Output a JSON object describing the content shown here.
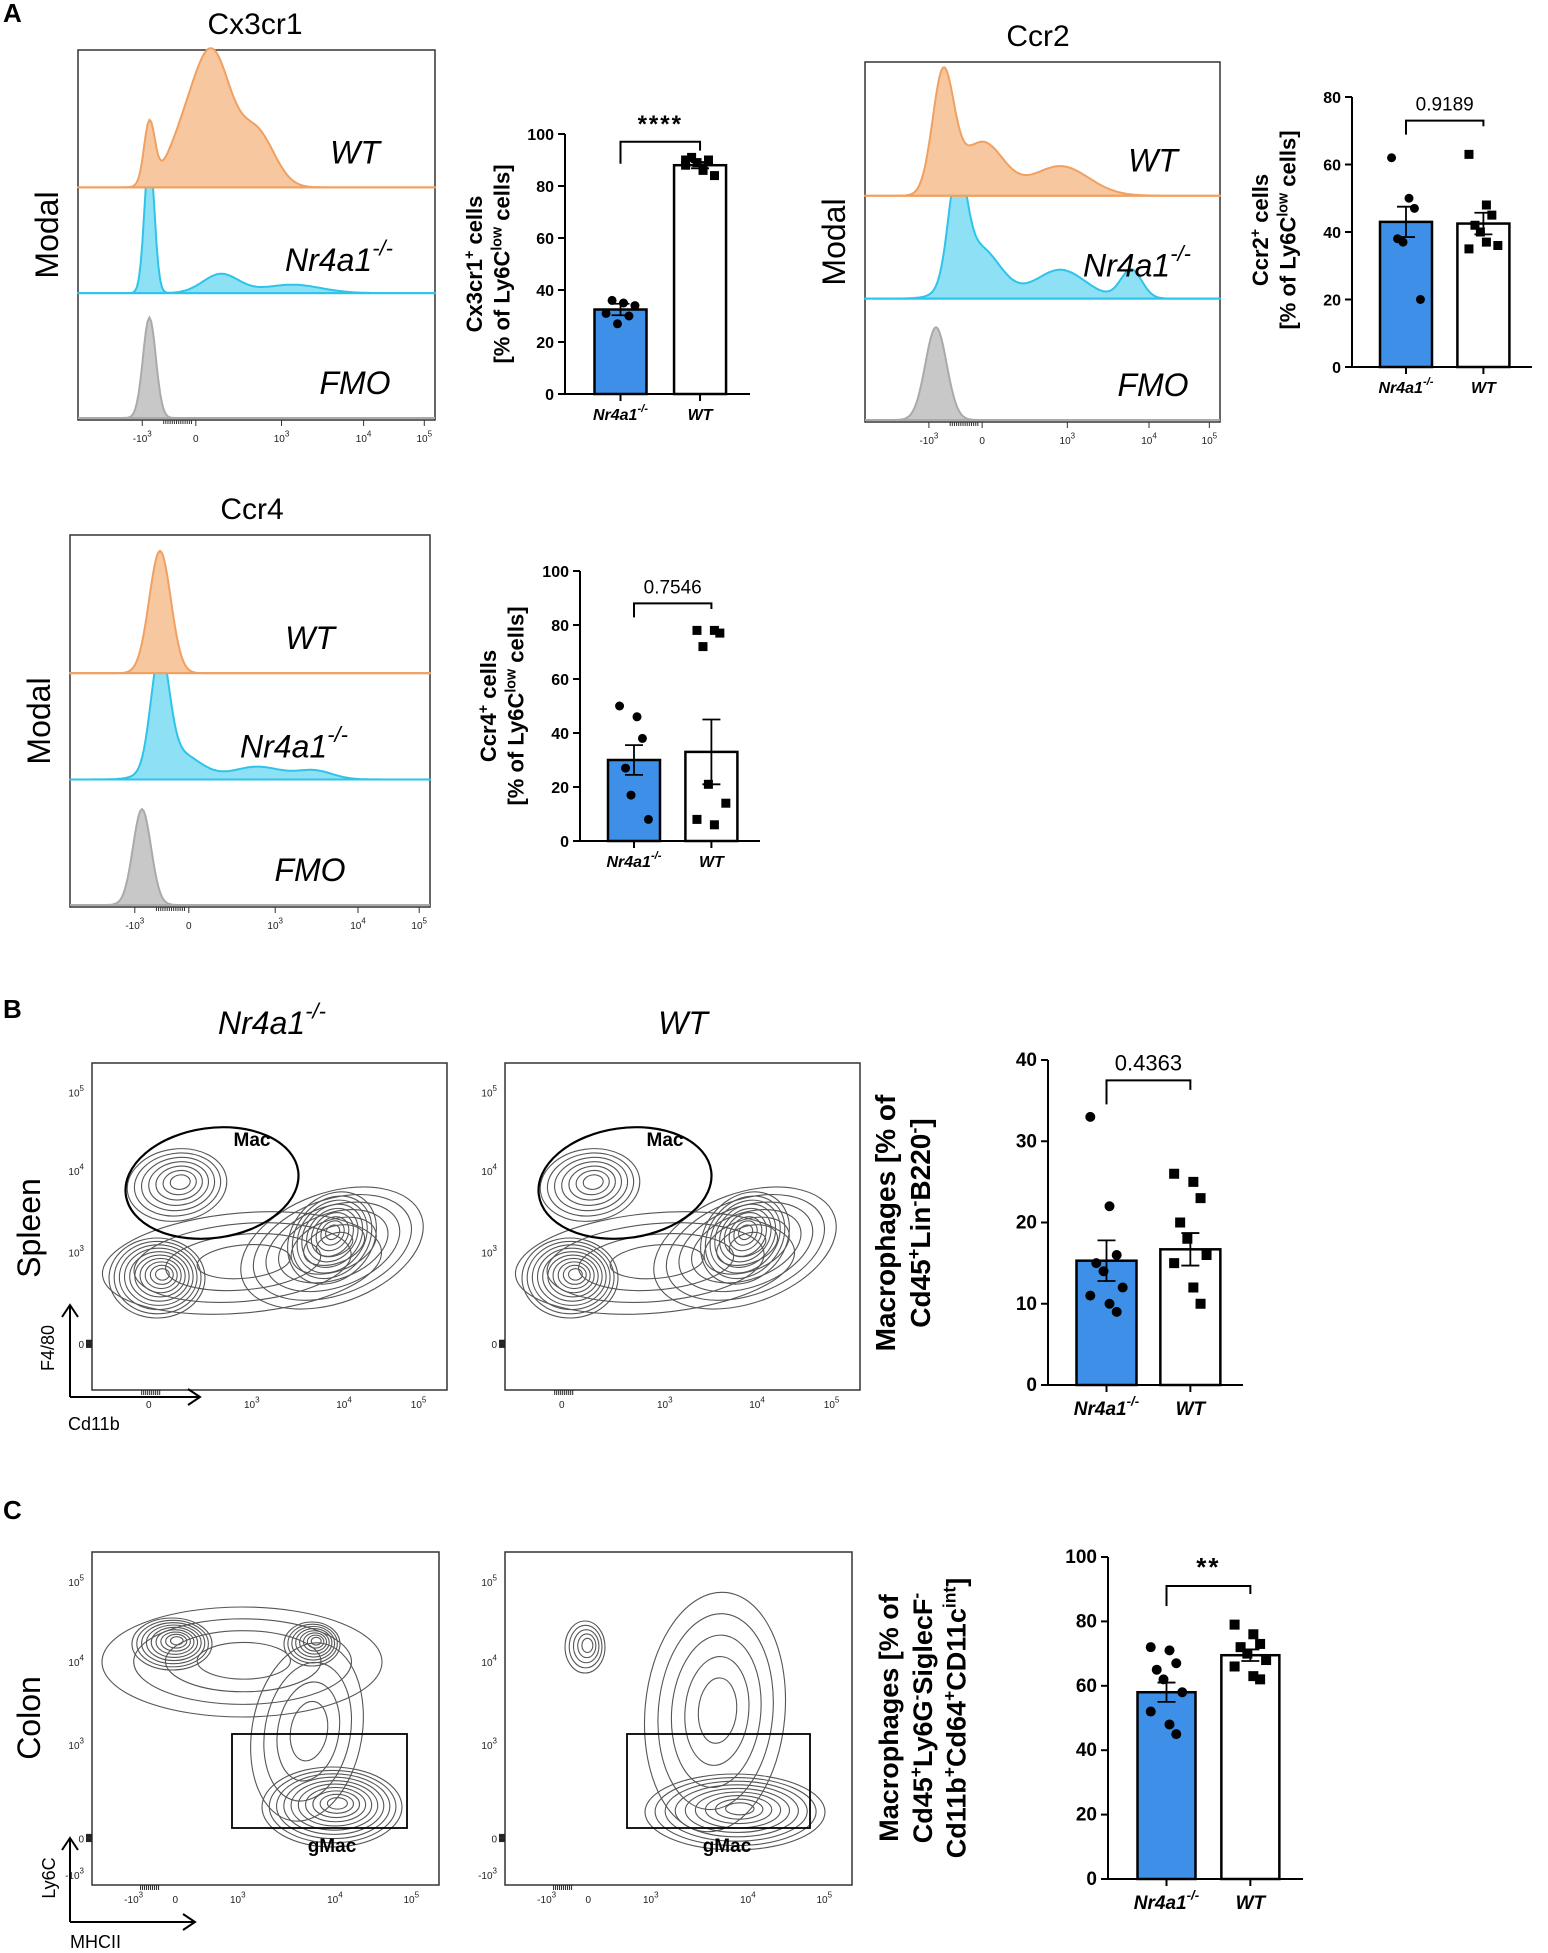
{
  "panels": {
    "A": "A",
    "B": "B",
    "C": "C"
  },
  "histograms": {
    "cx3cr1": {
      "title": "Cx3cr1",
      "ylabel": "Modal",
      "labels": [
        "WT",
        "Nr4a1",
        "FMO"
      ]
    },
    "ccr2": {
      "title": "Ccr2",
      "ylabel": "Modal",
      "labels": [
        "WT",
        "Nr4a1",
        "FMO"
      ]
    },
    "ccr4": {
      "title": "Ccr4",
      "ylabel": "Modal",
      "labels": [
        "WT",
        "Nr4a1",
        "FMO"
      ]
    },
    "ko_sup": "-/-",
    "xticks": [
      "-10",
      "0",
      "10",
      "10",
      "10"
    ],
    "xtick_exps": [
      "3",
      "",
      "3",
      "4",
      "5"
    ]
  },
  "contour_plots": {
    "B": {
      "row_label": "Spleen",
      "col_labels": [
        "Nr4a1",
        "WT"
      ],
      "gate": "Mac",
      "xaxis": "Cd11b",
      "yaxis": "F4/80"
    },
    "C": {
      "row_label": "Colon",
      "gate": "gMac",
      "xaxis": "MHCII",
      "yaxis": "Ly6C"
    },
    "yticks": [
      "10",
      "10",
      "10",
      "0"
    ],
    "ytick_exps": [
      "5",
      "4",
      "3",
      ""
    ],
    "c_extra_ytick": "-10",
    "c_extra_exp": "3"
  },
  "chart_data": [
    {
      "id": "cx3cr1_bar",
      "type": "bar",
      "categories": [
        "Nr4a1",
        "WT"
      ],
      "category_sup": "-/-",
      "series": [
        {
          "name": "Nr4a1",
          "mean": 32.5,
          "sem": 2.2,
          "points": [
            31,
            35,
            30,
            36,
            27,
            34
          ],
          "color": "#3d8fe8",
          "marker": "circle"
        },
        {
          "name": "WT",
          "mean": 88,
          "sem": 1.2,
          "points": [
            88,
            86,
            90,
            91,
            89,
            84,
            90,
            87
          ],
          "color": "#ffffff",
          "marker": "square"
        }
      ],
      "ylim": [
        0,
        100
      ],
      "yticks": [
        0,
        20,
        40,
        60,
        80,
        100
      ],
      "ylabel_parts": [
        "Cx3cr1",
        "+",
        " cells",
        "[% of Ly6C",
        "low",
        " cells]"
      ],
      "annotation": "****"
    },
    {
      "id": "ccr2_bar",
      "type": "bar",
      "categories": [
        "Nr4a1",
        "WT"
      ],
      "category_sup": "-/-",
      "series": [
        {
          "name": "Nr4a1",
          "mean": 43,
          "sem": 4.5,
          "points": [
            62,
            50,
            47,
            38,
            37,
            20
          ],
          "color": "#3d8fe8",
          "marker": "circle"
        },
        {
          "name": "WT",
          "mean": 42.5,
          "sem": 3.2,
          "points": [
            63,
            48,
            45,
            42,
            40,
            36,
            35,
            37
          ],
          "color": "#ffffff",
          "marker": "square"
        }
      ],
      "ylim": [
        0,
        80
      ],
      "yticks": [
        0,
        20,
        40,
        60,
        80
      ],
      "ylabel_parts": [
        "Ccr2",
        "+",
        " cells",
        "[% of Ly6C",
        "low",
        " cells]"
      ],
      "annotation": "0.9189"
    },
    {
      "id": "ccr4_bar",
      "type": "bar",
      "categories": [
        "Nr4a1",
        "WT"
      ],
      "category_sup": "-/-",
      "series": [
        {
          "name": "Nr4a1",
          "mean": 30,
          "sem": 5.5,
          "points": [
            50,
            46,
            38,
            27,
            17,
            8
          ],
          "color": "#3d8fe8",
          "marker": "circle"
        },
        {
          "name": "WT",
          "mean": 33,
          "sem": 12,
          "points": [
            78,
            78,
            77,
            72,
            21,
            14,
            8,
            6
          ],
          "color": "#ffffff",
          "marker": "square"
        }
      ],
      "ylim": [
        0,
        100
      ],
      "yticks": [
        0,
        20,
        40,
        60,
        80,
        100
      ],
      "ylabel_parts": [
        "Ccr4",
        "+",
        " cells",
        "[% of Ly6C",
        "low",
        " cells]"
      ],
      "annotation": "0.7546"
    },
    {
      "id": "spleen_mac_bar",
      "type": "bar",
      "categories": [
        "Nr4a1",
        "WT"
      ],
      "category_sup": "-/-",
      "series": [
        {
          "name": "Nr4a1",
          "mean": 15.3,
          "sem": 2.5,
          "points": [
            33,
            22,
            16,
            15,
            14,
            12,
            11,
            10,
            9
          ],
          "color": "#3d8fe8",
          "marker": "circle"
        },
        {
          "name": "WT",
          "mean": 16.7,
          "sem": 2.0,
          "points": [
            26,
            25,
            23,
            20,
            18,
            16,
            15,
            12,
            10
          ],
          "color": "#ffffff",
          "marker": "square"
        }
      ],
      "ylim": [
        0,
        40
      ],
      "yticks": [
        0,
        10,
        20,
        30,
        40
      ],
      "ylabel_parts": [
        "Macrophages [% of",
        "Cd45",
        "+",
        "Lin",
        "-",
        "B220",
        "-",
        "]"
      ],
      "annotation": "0.4363"
    },
    {
      "id": "colon_mac_bar",
      "type": "bar",
      "categories": [
        "Nr4a1",
        "WT"
      ],
      "category_sup": "-/-",
      "series": [
        {
          "name": "Nr4a1",
          "mean": 58,
          "sem": 3,
          "points": [
            72,
            71,
            67,
            65,
            62,
            58,
            52,
            48,
            45
          ],
          "color": "#3d8fe8",
          "marker": "circle"
        },
        {
          "name": "WT",
          "mean": 69.5,
          "sem": 1.8,
          "points": [
            79,
            76,
            73,
            72,
            70,
            68,
            66,
            63,
            62
          ],
          "color": "#ffffff",
          "marker": "square"
        }
      ],
      "ylim": [
        0,
        100
      ],
      "yticks": [
        0,
        20,
        40,
        60,
        80,
        100
      ],
      "ylabel_lines": [
        "Macrophages [% of",
        "Cd45+Ly6G-SiglecF-",
        "Cd11b+Cd64+CD11c int]"
      ],
      "annotation": "**"
    }
  ],
  "colors": {
    "ko": "#3d8fe8",
    "wt_hist": "#f7c8a0",
    "wt_line": "#f0a060",
    "ko_hist": "#8ee0f4",
    "ko_line": "#2ec4ea",
    "fmo": "#c8c8c8"
  }
}
